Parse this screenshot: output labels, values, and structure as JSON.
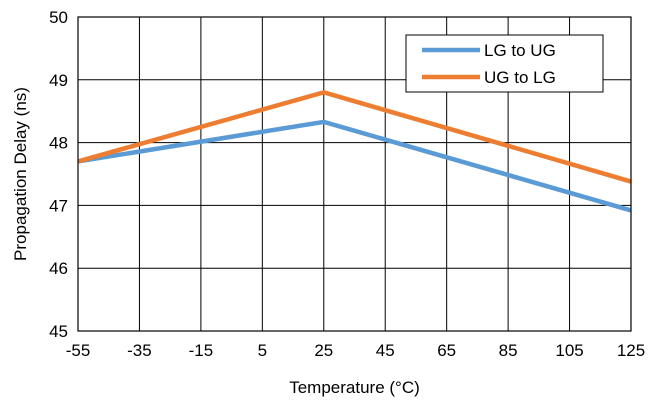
{
  "chart_data": {
    "type": "line",
    "title": "",
    "xlabel": "Temperature (°C)",
    "ylabel": "Propagation Delay (ns)",
    "x": [
      -55,
      25,
      125
    ],
    "x_ticks": [
      -55,
      -35,
      -15,
      5,
      25,
      45,
      65,
      85,
      105,
      125
    ],
    "xlim": [
      -55,
      125
    ],
    "y_ticks": [
      45,
      46,
      47,
      48,
      49,
      50
    ],
    "ylim": [
      45,
      50
    ],
    "grid": true,
    "legend_position": "top-right",
    "series": [
      {
        "name": "LG to UG",
        "color": "#5B9BD5",
        "values": [
          47.7,
          48.33,
          46.92
        ]
      },
      {
        "name": "UG to LG",
        "color": "#ED7D31",
        "values": [
          47.7,
          48.8,
          47.38
        ]
      }
    ]
  }
}
